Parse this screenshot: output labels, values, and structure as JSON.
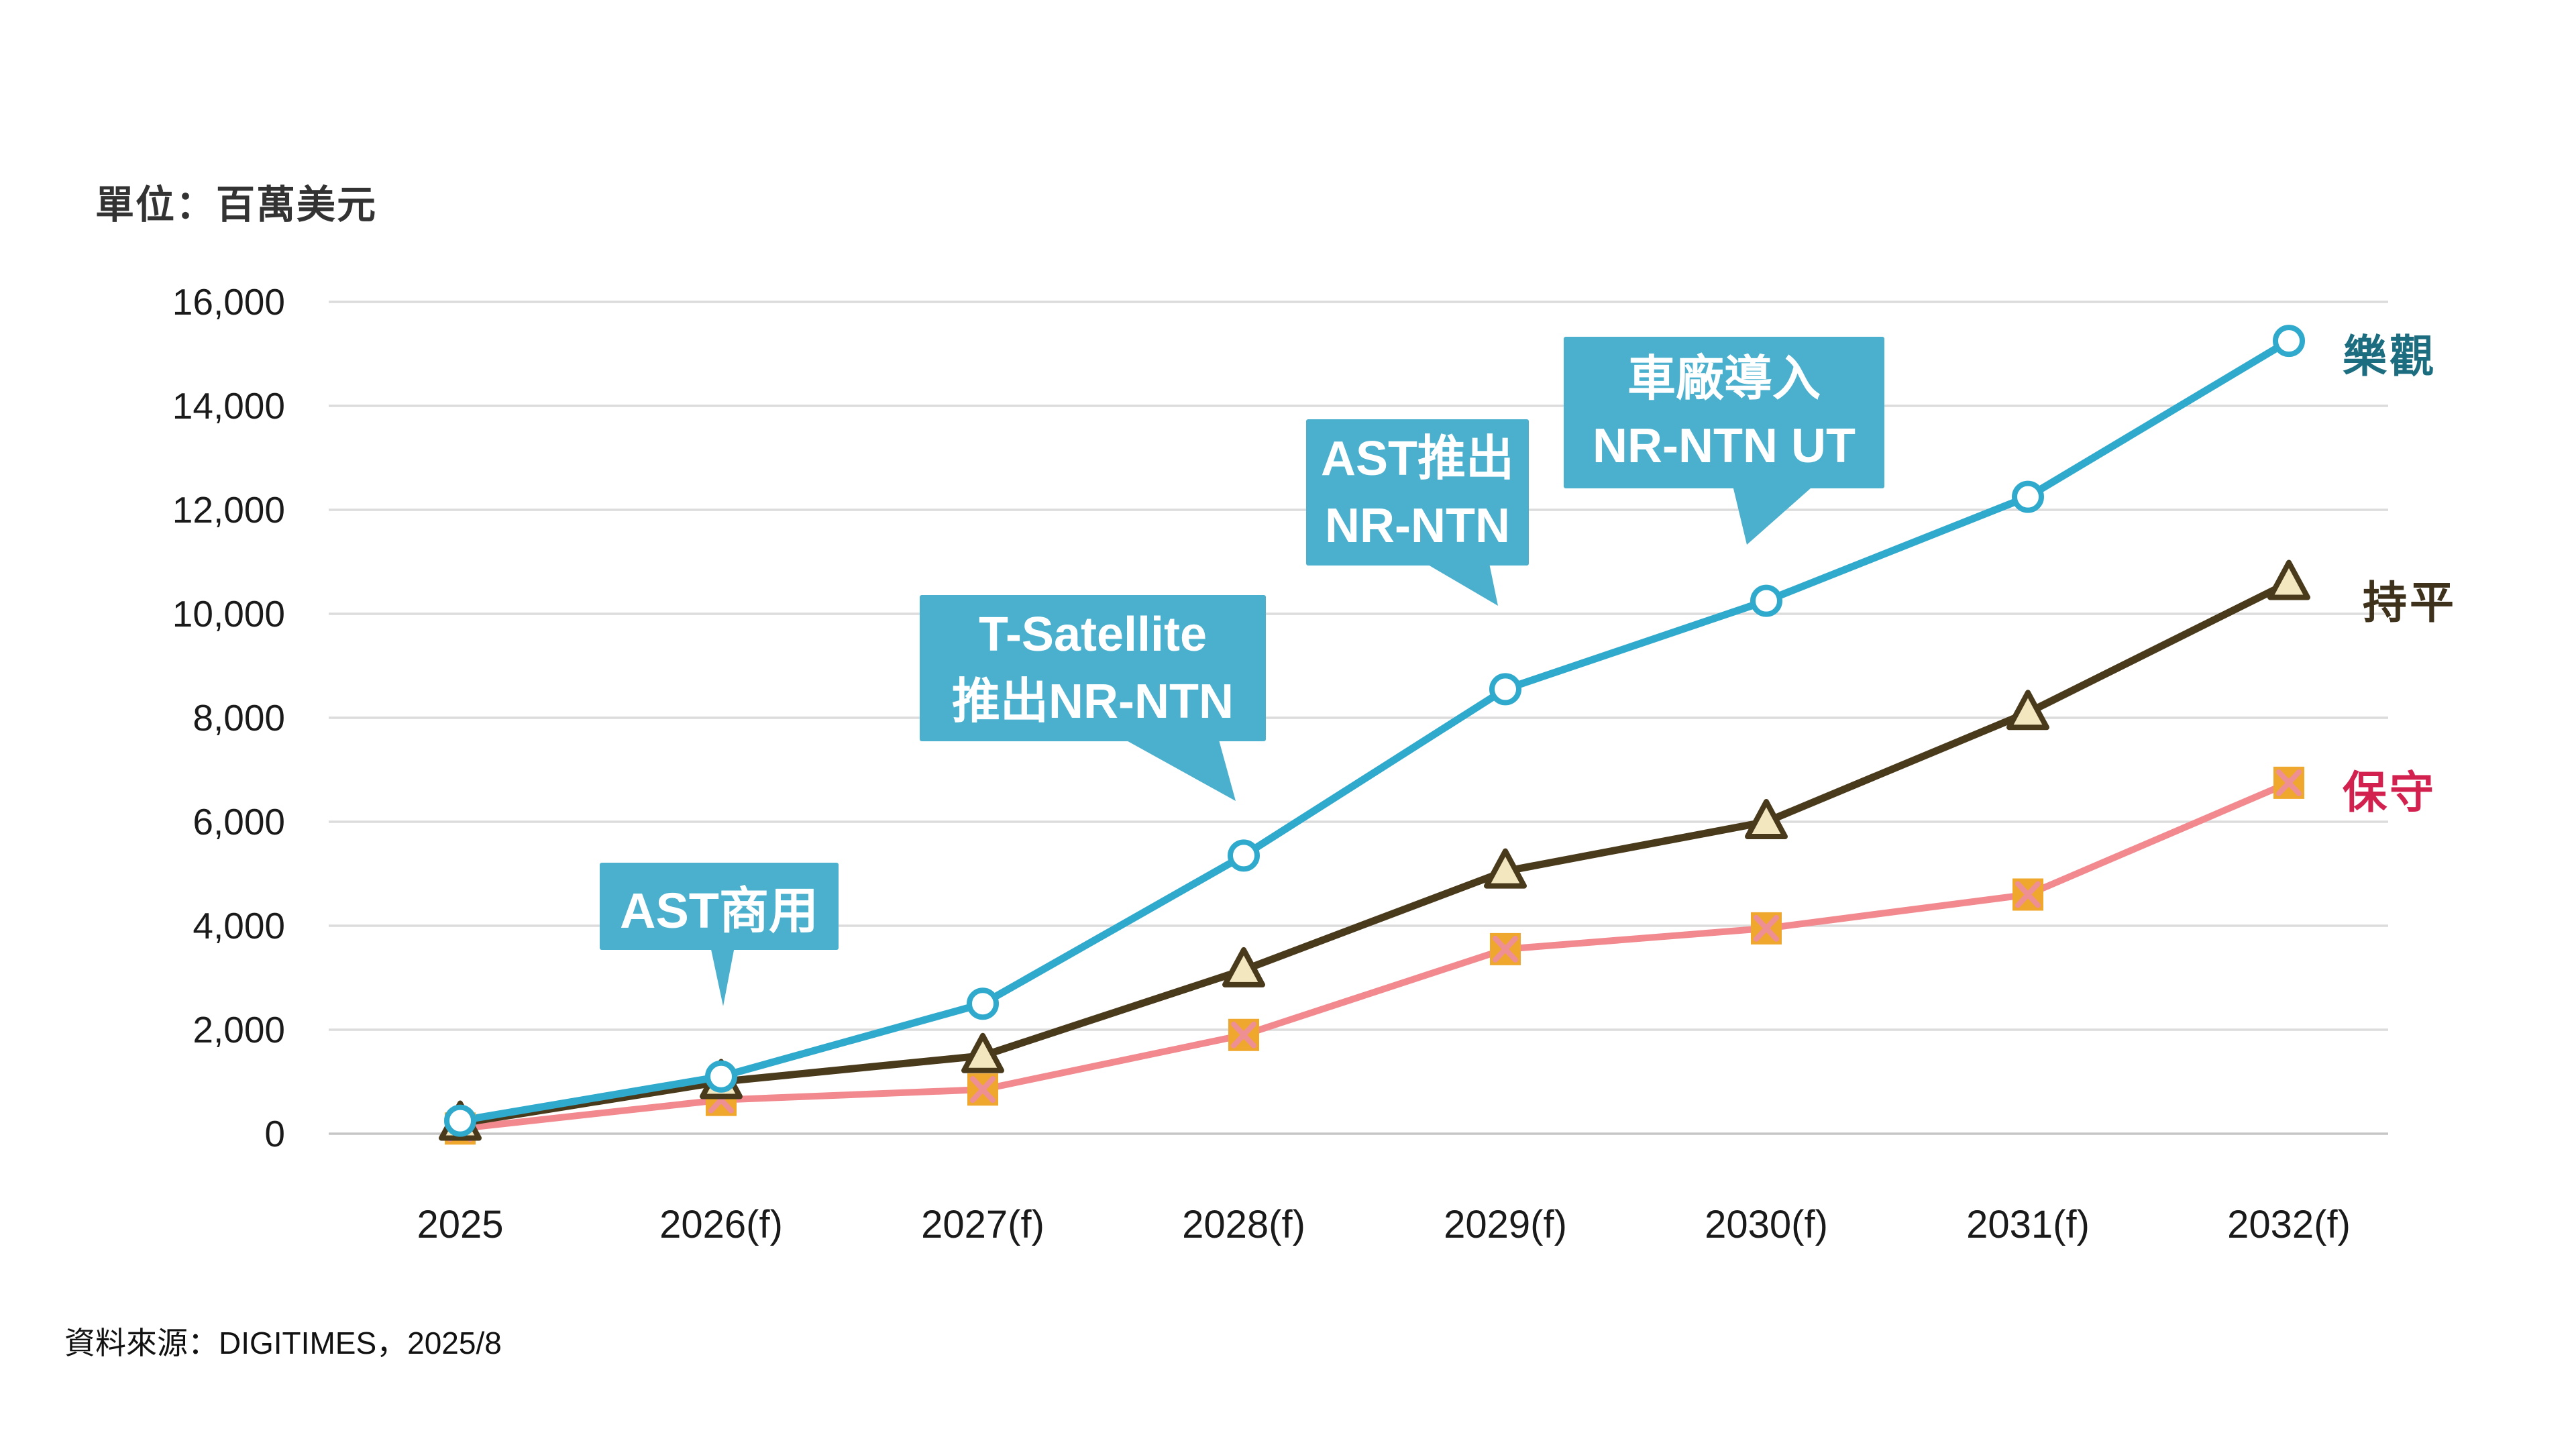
{
  "page": {
    "background": "#ffffff",
    "accent_teal": "#4BB0CE"
  },
  "unit_label": "單位：百萬美元",
  "source_note": "資料來源：DIGITIMES，2025/8",
  "legend": [
    {
      "id": "optimistic",
      "label": "樂觀",
      "color": "#1D6D80"
    },
    {
      "id": "flat",
      "label": "持平",
      "color": "#3F321C"
    },
    {
      "id": "conservative",
      "label": "保守",
      "color": "#D2214E"
    }
  ],
  "annotations": {
    "ast_commercial": {
      "lines": [
        "AST商用"
      ]
    },
    "t_satellite": {
      "lines": [
        "T-Satellite",
        "推出NR-NTN"
      ]
    },
    "ast_nr_ntn": {
      "lines": [
        "AST推出",
        "NR-NTN"
      ]
    },
    "car_oem": {
      "lines": [
        "車廠導入",
        "NR-NTN UT"
      ]
    }
  },
  "chart_data": {
    "type": "line",
    "title": "",
    "xlabel": "",
    "ylabel": "百萬美元",
    "categories": [
      "2025",
      "2026(f)",
      "2027(f)",
      "2028(f)",
      "2029(f)",
      "2030(f)",
      "2031(f)",
      "2032(f)"
    ],
    "series": [
      {
        "id": "conservative",
        "name": "保守",
        "marker": "square-x",
        "line_color": "#F1898F",
        "marker_fill": "#F0A72E",
        "marker_x_color": "#EE8F93",
        "values": [
          100,
          650,
          850,
          1900,
          3550,
          3950,
          4600,
          6750
        ]
      },
      {
        "id": "flat",
        "name": "持平",
        "marker": "triangle",
        "line_color": "#4A3A1C",
        "marker_fill": "#F3E7C0",
        "marker_stroke": "#4A3A1C",
        "values": [
          200,
          1000,
          1500,
          3150,
          5050,
          6000,
          8100,
          10600
        ]
      },
      {
        "id": "optimistic",
        "name": "樂觀",
        "marker": "circle",
        "line_color": "#2FAACD",
        "marker_fill": "#ffffff",
        "marker_stroke": "#2FAACD",
        "values": [
          250,
          1100,
          2500,
          5350,
          8550,
          10250,
          12250,
          15250
        ]
      }
    ],
    "ylim": [
      0,
      16000
    ],
    "ytick_step": 2000,
    "ytick_labels": [
      "0",
      "2,000",
      "4,000",
      "6,000",
      "8,000",
      "10,000",
      "12,000",
      "14,000",
      "16,000"
    ],
    "grid": true,
    "gridline_color": "#DCDCDC",
    "baseline_color": "#C6C6C6",
    "legend_position": "right-of-line-ends"
  }
}
